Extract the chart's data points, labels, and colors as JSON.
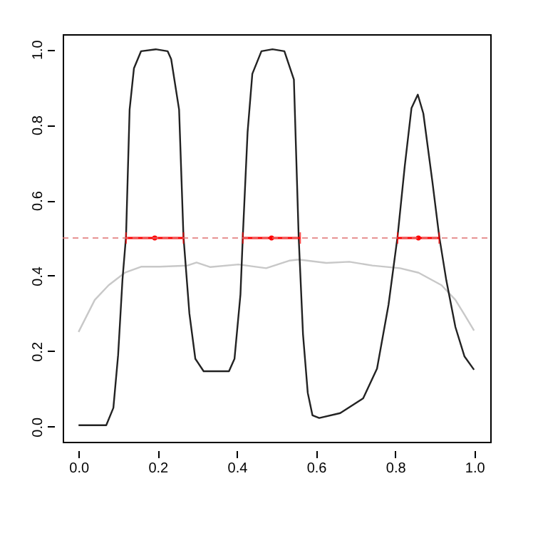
{
  "chart_data": {
    "type": "line",
    "xlim": [
      -0.04,
      1.04
    ],
    "ylim": [
      -0.04,
      1.04
    ],
    "xticks": [
      {
        "value": 0,
        "label": "0.0"
      },
      0.2,
      0.4,
      0.6,
      0.8,
      {
        "value": 1,
        "label": "1.0"
      }
    ],
    "yticks": [
      {
        "value": 0,
        "label": "0.0"
      },
      0.2,
      0.4,
      0.6,
      0.8,
      {
        "value": 1,
        "label": "1.0"
      }
    ],
    "marker": "none",
    "line_style": "solid",
    "series": [
      {
        "color": "#c8c8c8",
        "x": [
          0,
          0.041,
          0.076,
          0.117,
          0.158,
          0.205,
          0.275,
          0.298,
          0.333,
          0.404,
          0.474,
          0.532,
          0.556,
          0.626,
          0.684,
          0.742,
          0.812,
          0.859,
          0.917,
          0.952,
          0.975,
          0.999
        ],
        "values": [
          0.251,
          0.336,
          0.375,
          0.408,
          0.424,
          0.424,
          0.427,
          0.435,
          0.423,
          0.43,
          0.42,
          0.44,
          0.443,
          0.434,
          0.437,
          0.427,
          0.42,
          0.408,
          0.375,
          0.336,
          0.297,
          0.255
        ]
      },
      {
        "color": "#222222",
        "x": [
          0,
          0.07,
          0.088,
          0.1,
          0.111,
          0.12,
          0.129,
          0.14,
          0.158,
          0.195,
          0.225,
          0.234,
          0.254,
          0.265,
          0.28,
          0.295,
          0.316,
          0.38,
          0.394,
          0.409,
          0.415,
          0.427,
          0.439,
          0.462,
          0.49,
          0.52,
          0.544,
          0.556,
          0.567,
          0.579,
          0.591,
          0.608,
          0.661,
          0.719,
          0.754,
          0.783,
          0.806,
          0.824,
          0.841,
          0.857,
          0.871,
          0.894,
          0.911,
          0.929,
          0.952,
          0.975,
          0.999
        ],
        "values": [
          0.004,
          0.004,
          0.05,
          0.19,
          0.39,
          0.505,
          0.84,
          0.95,
          0.995,
          1.0,
          0.995,
          0.974,
          0.84,
          0.505,
          0.3,
          0.18,
          0.147,
          0.147,
          0.18,
          0.35,
          0.505,
          0.78,
          0.935,
          0.995,
          1.0,
          0.995,
          0.92,
          0.505,
          0.245,
          0.09,
          0.03,
          0.023,
          0.036,
          0.075,
          0.154,
          0.323,
          0.505,
          0.69,
          0.844,
          0.88,
          0.83,
          0.648,
          0.505,
          0.388,
          0.264,
          0.186,
          0.151
        ]
      },
      {
        "type": "scatter",
        "color": "#ff0000",
        "marker": "circle",
        "x": [
          0.1925,
          0.4875,
          0.8585
        ],
        "values": [
          0.5,
          0.5,
          0.5
        ],
        "xerrors": [
          0.0725,
          0.0725,
          0.0525
        ]
      }
    ],
    "ref_lines": [
      {
        "axis": "y",
        "value": 0.5,
        "color": "#e07070",
        "line_style": "dashed"
      }
    ]
  }
}
